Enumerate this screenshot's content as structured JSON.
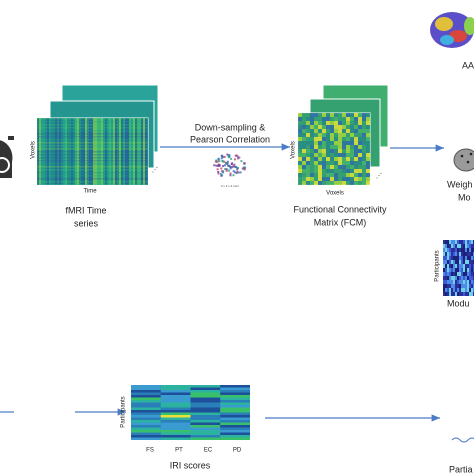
{
  "atlas": {
    "label": "AA"
  },
  "time_series": {
    "y_label": "Voxels",
    "x_label": "Time",
    "caption": [
      "fMRI Time",
      "series"
    ]
  },
  "step": {
    "label": [
      "Down-sampling &",
      "Pearson Correlation"
    ],
    "voxel_size": "4 x 4 x 4 mm³"
  },
  "fcm": {
    "y_label": "Voxels",
    "x_label": "Voxels",
    "caption": [
      "Functional Connectivity",
      "Matrix (FCM)"
    ]
  },
  "weighted": {
    "caption": [
      "Weigh",
      "Mo"
    ]
  },
  "modular": {
    "y_label": "Participants",
    "caption": "Modu"
  },
  "iri": {
    "y_label": "Participants",
    "columns": [
      "FS",
      "PT",
      "EC",
      "PD"
    ],
    "caption": "IRI scores"
  },
  "partial": {
    "caption": "Partia"
  }
}
